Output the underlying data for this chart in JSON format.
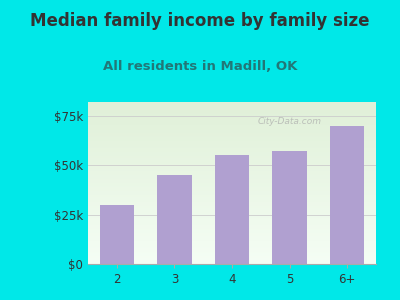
{
  "categories": [
    "2",
    "3",
    "4",
    "5",
    "6+"
  ],
  "values": [
    30000,
    45000,
    55000,
    57000,
    70000
  ],
  "bar_color": "#b0a0d0",
  "background_color": "#00e8e8",
  "plot_bg_top": "#e0f0d8",
  "plot_bg_bottom": "#f5fef5",
  "title": "Median family income by family size",
  "subtitle": "All residents in Madill, OK",
  "title_color": "#333333",
  "subtitle_color": "#227777",
  "yticks": [
    0,
    25000,
    50000,
    75000
  ],
  "ytick_labels": [
    "$0",
    "$25k",
    "$50k",
    "$75k"
  ],
  "ylim": [
    0,
    82000
  ],
  "watermark": "City-Data.com",
  "title_fontsize": 12,
  "subtitle_fontsize": 9.5,
  "tick_fontsize": 8.5
}
